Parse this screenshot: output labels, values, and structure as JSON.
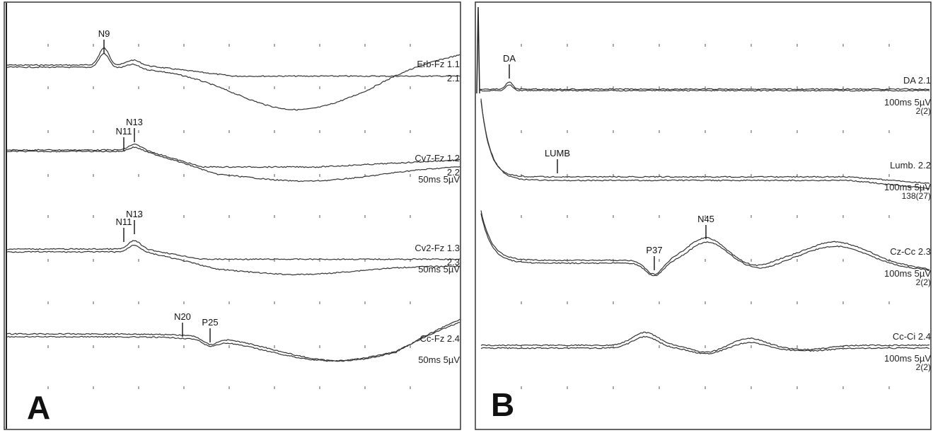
{
  "figure": {
    "panels": [
      {
        "letter": "A",
        "traces": [
          {
            "label": "Erb-Fz 1.1",
            "label2": "2.1",
            "settings": "",
            "peaks": [
              {
                "name": "N9",
                "x": 147
              }
            ]
          },
          {
            "label": "Cv7-Fz 1.2",
            "label2": "2.2",
            "settings": "50ms 5µV",
            "peaks": [
              {
                "name": "N11",
                "x": 175
              },
              {
                "name": "N13",
                "x": 190
              }
            ]
          },
          {
            "label": "Cv2-Fz 1.3",
            "label2": "2.3",
            "settings": "50ms 5µV",
            "peaks": [
              {
                "name": "N11",
                "x": 175
              },
              {
                "name": "N13",
                "x": 190
              }
            ]
          },
          {
            "label": "Cc-Fz 2.4",
            "label2": "",
            "settings": "50ms 5µV",
            "peaks": [
              {
                "name": "N20",
                "x": 258
              },
              {
                "name": "P25",
                "x": 297
              }
            ]
          }
        ]
      },
      {
        "letter": "B",
        "traces": [
          {
            "label": "DA 2.1",
            "label2": "",
            "settings": "100ms 5µV",
            "settings2": "2(2)",
            "peaks": [
              {
                "name": "DA",
                "x": 720
              }
            ]
          },
          {
            "label": "Lumb. 2.2",
            "label2": "",
            "settings": "100ms 5µV",
            "settings2": "138(27)",
            "peaks": [
              {
                "name": "LUMB",
                "x": 788
              }
            ]
          },
          {
            "label": "Cz-Cc 2.3",
            "label2": "",
            "settings": "100ms 5µV",
            "settings2": "2(2)",
            "peaks": [
              {
                "name": "P37",
                "x": 925
              },
              {
                "name": "N45",
                "x": 998
              }
            ]
          },
          {
            "label": "Cc-Ci 2.4",
            "label2": "",
            "settings": "100ms 5µV",
            "settings2": "2(2)",
            "peaks": []
          }
        ]
      }
    ]
  },
  "chart_data": [
    {
      "type": "line",
      "panel": "A",
      "x_units": "ms (50 ms/div)",
      "y_units": "µV (5 µV/div)",
      "grid": true,
      "series": [
        {
          "name": "Erb-Fz",
          "peaks": [
            "N9"
          ]
        },
        {
          "name": "Cv7-Fz",
          "peaks": [
            "N11",
            "N13"
          ]
        },
        {
          "name": "Cv2-Fz",
          "peaks": [
            "N11",
            "N13"
          ]
        },
        {
          "name": "Cc-Fz",
          "peaks": [
            "N20",
            "P25"
          ]
        }
      ]
    },
    {
      "type": "line",
      "panel": "B",
      "x_units": "ms (100 ms/div)",
      "y_units": "µV (5 µV/div)",
      "grid": true,
      "series": [
        {
          "name": "DA",
          "peaks": [
            "DA"
          ]
        },
        {
          "name": "Lumb.",
          "peaks": [
            "LUMB"
          ]
        },
        {
          "name": "Cz-Cc",
          "peaks": [
            "P37",
            "N45"
          ]
        },
        {
          "name": "Cc-Ci",
          "peaks": []
        }
      ]
    }
  ]
}
